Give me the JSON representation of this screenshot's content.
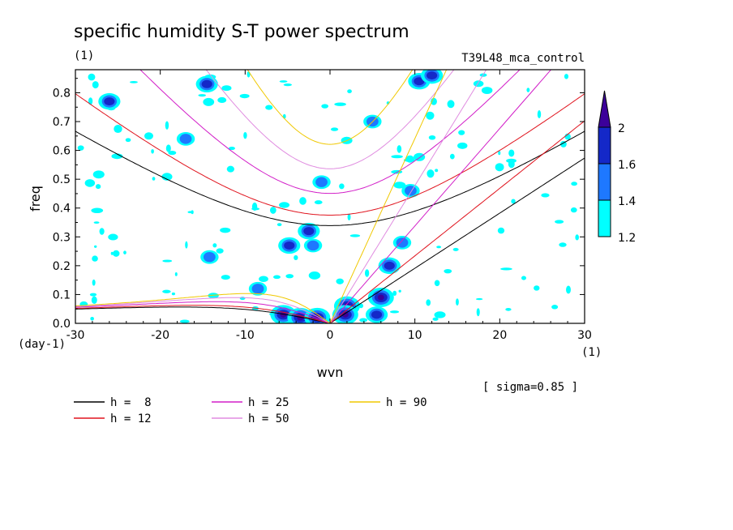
{
  "chart_data": {
    "type": "contour",
    "title": "specific humidity S-T power spectrum",
    "subtitle_left": "(1)",
    "subtitle_right": "T39L48_mca_control",
    "xlabel": "wvn",
    "ylabel": "freq",
    "x_unit": "(1)",
    "y_unit": "(day-1)",
    "sigma_label": "[ sigma=0.85 ]",
    "xlim": [
      -30,
      30
    ],
    "ylim": [
      0,
      0.88
    ],
    "x_ticks": [
      -30,
      -20,
      -10,
      0,
      10,
      20,
      30
    ],
    "x_tick_labels": [
      "-30",
      "-20",
      "-10",
      "0",
      "10",
      "20",
      "30"
    ],
    "y_ticks": [
      0,
      0.1,
      0.2,
      0.3,
      0.4,
      0.5,
      0.6,
      0.7,
      0.8
    ],
    "y_tick_labels": [
      "0.0",
      "0.1",
      "0.2",
      "0.3",
      "0.4",
      "0.5",
      "0.6",
      "0.7",
      "0.8"
    ],
    "colorbar": {
      "levels": [
        1.2,
        1.4,
        1.6,
        2
      ],
      "labels": [
        "1.2",
        "1.4",
        "1.6",
        "2"
      ],
      "colors": [
        "#00ffff",
        "#1e78ff",
        "#1428c8",
        "#3c009a"
      ]
    },
    "dispersion_curves": [
      {
        "name": "h =  8",
        "h": 8,
        "color": "#000000"
      },
      {
        "name": "h = 12",
        "h": 12,
        "color": "#e0141e"
      },
      {
        "name": "h = 25",
        "h": 25,
        "color": "#d21ec8"
      },
      {
        "name": "h = 50",
        "h": 50,
        "color": "#e08ce0"
      },
      {
        "name": "h = 90",
        "h": 90,
        "color": "#f0c800"
      }
    ],
    "high_power_regions": [
      {
        "wvn": -5.5,
        "freq": 0.03,
        "level": 2
      },
      {
        "wvn": -3.5,
        "freq": 0.02,
        "level": 2
      },
      {
        "wvn": -1.5,
        "freq": 0.02,
        "level": 2
      },
      {
        "wvn": 2.0,
        "freq": 0.06,
        "level": 2
      },
      {
        "wvn": 1.8,
        "freq": 0.03,
        "level": 2
      },
      {
        "wvn": 6.0,
        "freq": 0.09,
        "level": 2
      },
      {
        "wvn": 5.5,
        "freq": 0.03,
        "level": 1.6
      },
      {
        "wvn": 7.0,
        "freq": 0.2,
        "level": 1.6
      },
      {
        "wvn": -2.5,
        "freq": 0.32,
        "level": 1.6
      },
      {
        "wvn": -4.8,
        "freq": 0.27,
        "level": 1.6
      },
      {
        "wvn": -2.0,
        "freq": 0.27,
        "level": 1.4
      },
      {
        "wvn": -14.2,
        "freq": 0.23,
        "level": 1.4
      },
      {
        "wvn": -26.0,
        "freq": 0.77,
        "level": 1.6
      },
      {
        "wvn": -14.5,
        "freq": 0.83,
        "level": 1.6
      },
      {
        "wvn": -17.0,
        "freq": 0.64,
        "level": 1.4
      },
      {
        "wvn": -8.5,
        "freq": 0.12,
        "level": 1.4
      },
      {
        "wvn": 8.5,
        "freq": 0.28,
        "level": 1.4
      },
      {
        "wvn": 9.5,
        "freq": 0.46,
        "level": 1.4
      },
      {
        "wvn": -1.0,
        "freq": 0.49,
        "level": 1.4
      },
      {
        "wvn": 5.0,
        "freq": 0.7,
        "level": 1.4
      },
      {
        "wvn": 10.5,
        "freq": 0.84,
        "level": 1.6
      },
      {
        "wvn": 12.0,
        "freq": 0.86,
        "level": 1.6
      }
    ]
  }
}
